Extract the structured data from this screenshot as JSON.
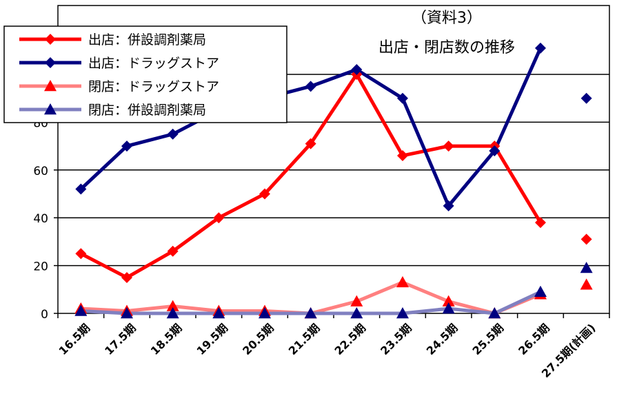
{
  "chart_data": {
    "type": "line",
    "title": "出店・閉店数の推移",
    "subtitle": "（資料3）",
    "categories": [
      "16.5期",
      "17.5期",
      "18.5期",
      "19.5期",
      "20.5期",
      "21.5期",
      "22.5期",
      "23.5期",
      "24.5期",
      "25.5期",
      "26.5期",
      "27.5期(計画)"
    ],
    "ylim": [
      0,
      100
    ],
    "yticks": [
      0,
      20,
      40,
      60,
      80
    ],
    "grid": true,
    "legend_position": "top-left",
    "series": [
      {
        "name": "出店：併設調剤薬局",
        "color": "#ff0000",
        "marker": "diamond",
        "values": [
          25,
          15,
          26,
          40,
          50,
          71,
          100,
          66,
          70,
          70,
          38,
          31
        ]
      },
      {
        "name": "出店：ドラッグストア",
        "color": "#000080",
        "marker": "diamond",
        "values": [
          52,
          70,
          75,
          85,
          90,
          95,
          102,
          90,
          45,
          68,
          111,
          90
        ]
      },
      {
        "name": "閉店：ドラッグストア",
        "color": "#ff8080",
        "marker": "triangle",
        "values": [
          2,
          1,
          3,
          1,
          1,
          0,
          5,
          13,
          5,
          0,
          8,
          12
        ]
      },
      {
        "name": "閉店：併設調剤薬局",
        "color": "#8080c0",
        "marker": "triangle",
        "values": [
          1,
          0,
          0,
          0,
          0,
          0,
          0,
          0,
          2,
          0,
          9,
          19
        ]
      }
    ],
    "last_point_unconnected": true
  }
}
